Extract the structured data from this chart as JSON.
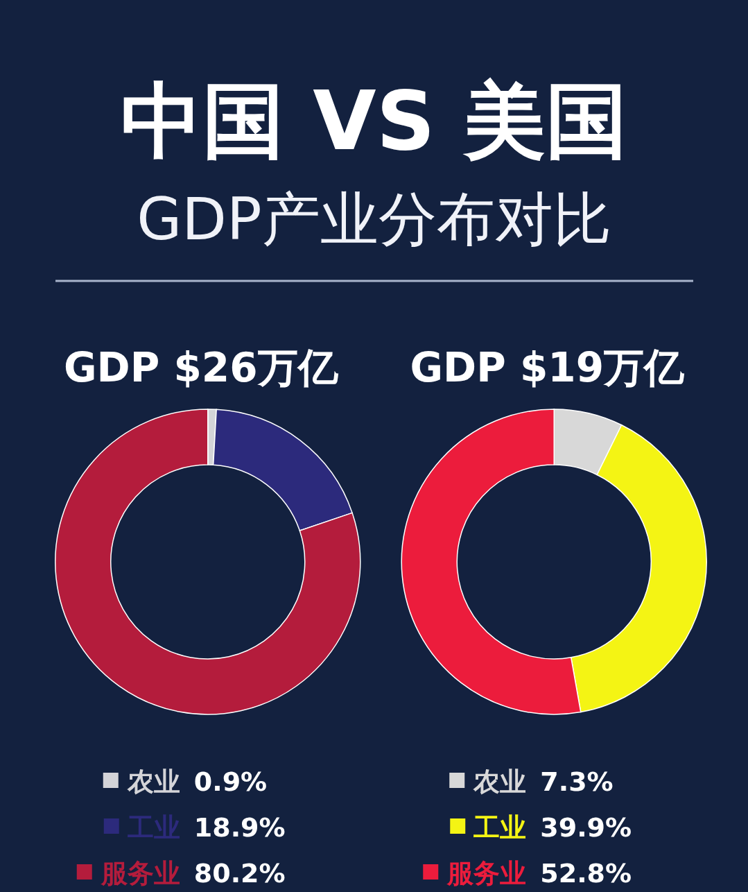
{
  "chart_data": [
    {
      "type": "donut",
      "title": "中国 VS 美国",
      "subtitle": "GDP产业分布对比",
      "annotations": [
        "GDP $26万亿"
      ],
      "categories": [
        "农业",
        "工业",
        "服务业"
      ],
      "values": [
        0.9,
        18.9,
        80.2
      ],
      "colors": [
        "#d4d4d8",
        "#2c2a7c",
        "#b41c3c"
      ],
      "value_labels": [
        "0.9%",
        "18.9%",
        "80.2%"
      ],
      "legend": "bottom"
    },
    {
      "type": "donut",
      "annotations": [
        "GDP $19万亿"
      ],
      "categories": [
        "农业",
        "工业",
        "服务业"
      ],
      "values": [
        7.3,
        39.9,
        52.8
      ],
      "colors": [
        "#d8d8d8",
        "#f4f414",
        "#ec1c3c"
      ],
      "value_labels": [
        "7.3%",
        "39.9%",
        "52.8%"
      ],
      "legend": "bottom"
    }
  ]
}
